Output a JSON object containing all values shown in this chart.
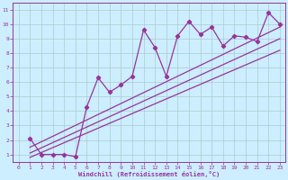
{
  "xlabel": "Windchill (Refroidissement éolien,°C)",
  "bg_color": "#cceeff",
  "line_color": "#993399",
  "grid_color": "#aacccc",
  "xlim": [
    -0.5,
    23.5
  ],
  "ylim": [
    0.5,
    11.5
  ],
  "xticks": [
    0,
    1,
    2,
    3,
    4,
    5,
    6,
    7,
    8,
    9,
    10,
    11,
    12,
    13,
    14,
    15,
    16,
    17,
    18,
    19,
    20,
    21,
    22,
    23
  ],
  "yticks": [
    1,
    2,
    3,
    4,
    5,
    6,
    7,
    8,
    9,
    10,
    11
  ],
  "scatter_x": [
    1,
    2,
    3,
    4,
    5,
    6,
    7,
    8,
    9,
    10,
    11,
    12,
    13,
    14,
    15,
    16,
    17,
    18,
    19,
    20,
    21,
    22,
    23
  ],
  "scatter_y": [
    2.1,
    1.0,
    1.0,
    1.0,
    0.85,
    4.3,
    6.3,
    5.3,
    5.8,
    6.4,
    9.6,
    8.4,
    6.4,
    9.2,
    10.2,
    9.3,
    9.8,
    8.5,
    9.2,
    9.1,
    8.8,
    10.8,
    10.0
  ],
  "line1_x": [
    1,
    23
  ],
  "line1_y": [
    1.1,
    9.0
  ],
  "line2_x": [
    1,
    23
  ],
  "line2_y": [
    1.5,
    9.8
  ],
  "line3_x": [
    1,
    23
  ],
  "line3_y": [
    0.8,
    8.2
  ]
}
